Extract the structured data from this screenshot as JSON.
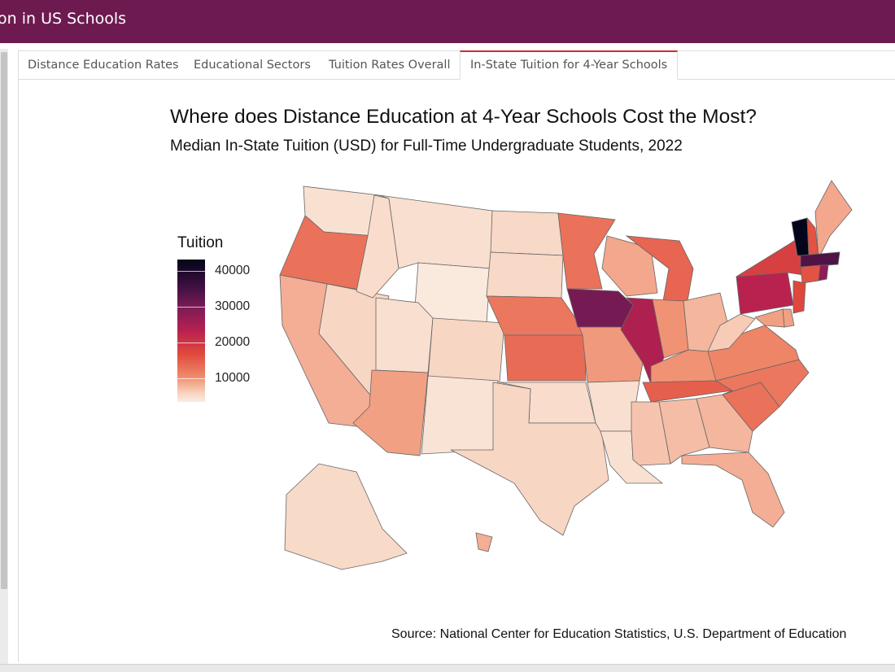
{
  "app": {
    "title": "on in US Schools"
  },
  "tabs": [
    {
      "label": "Distance Education Rates"
    },
    {
      "label": "Educational Sectors"
    },
    {
      "label": "Tuition Rates Overall"
    },
    {
      "label": "In-State Tuition for 4-Year Schools",
      "active": true
    }
  ],
  "chart": {
    "title": "Where does Distance Education at 4-Year Schools Cost the Most?",
    "subtitle": "Median In-State Tuition (USD) for Full-Time Undergraduate Students, 2022",
    "source": "Source: National Center for Education Statistics, U.S. Department of Education"
  },
  "chart_data": {
    "type": "choropleth map",
    "title": "Where does Distance Education at 4-Year Schools Cost the Most?",
    "subtitle": "Median In-State Tuition (USD) for Full-Time Undergraduate Students, 2022",
    "legend": {
      "title": "Tuition",
      "ticks": [
        40000,
        30000,
        20000,
        10000
      ],
      "range": [
        5000,
        42000
      ],
      "placement": "left"
    },
    "color_scale": [
      "#faebe0",
      "#f8d5c2",
      "#ef8a6a",
      "#e0483d",
      "#b8214f",
      "#7d1b56",
      "#3b0f3f",
      "#03051a"
    ],
    "states": [
      {
        "name": "WA",
        "value": 7500
      },
      {
        "name": "OR",
        "value": 17500
      },
      {
        "name": "CA",
        "value": 13000
      },
      {
        "name": "NV",
        "value": 10000
      },
      {
        "name": "ID",
        "value": 8500
      },
      {
        "name": "MT",
        "value": 8000
      },
      {
        "name": "WY",
        "value": 5500
      },
      {
        "name": "UT",
        "value": 8000
      },
      {
        "name": "AZ",
        "value": 14000
      },
      {
        "name": "CO",
        "value": 10000
      },
      {
        "name": "NM",
        "value": 7000
      },
      {
        "name": "ND",
        "value": 9500
      },
      {
        "name": "SD",
        "value": 9500
      },
      {
        "name": "NE",
        "value": 17000
      },
      {
        "name": "KS",
        "value": 18000
      },
      {
        "name": "OK",
        "value": 8500
      },
      {
        "name": "TX",
        "value": 10000
      },
      {
        "name": "MN",
        "value": 17500
      },
      {
        "name": "IA",
        "value": 32000
      },
      {
        "name": "MO",
        "value": 14500
      },
      {
        "name": "AR",
        "value": 8000
      },
      {
        "name": "LA",
        "value": 7500
      },
      {
        "name": "WI",
        "value": 13500
      },
      {
        "name": "IL",
        "value": 27000
      },
      {
        "name": "MI",
        "value": 18500
      },
      {
        "name": "IN",
        "value": 15000
      },
      {
        "name": "OH",
        "value": 12500
      },
      {
        "name": "KY",
        "value": 15000
      },
      {
        "name": "TN",
        "value": 19000
      },
      {
        "name": "MS",
        "value": 11500
      },
      {
        "name": "AL",
        "value": 12000
      },
      {
        "name": "GA",
        "value": 12500
      },
      {
        "name": "FL",
        "value": 13000
      },
      {
        "name": "SC",
        "value": 17500
      },
      {
        "name": "NC",
        "value": 17000
      },
      {
        "name": "VA",
        "value": 16000
      },
      {
        "name": "WV",
        "value": 11000
      },
      {
        "name": "PA",
        "value": 26000
      },
      {
        "name": "NY",
        "value": 22000
      },
      {
        "name": "VT",
        "value": 42000
      },
      {
        "name": "NH",
        "value": 20000
      },
      {
        "name": "ME",
        "value": 13500
      },
      {
        "name": "MA",
        "value": 35000
      },
      {
        "name": "CT",
        "value": 20000
      },
      {
        "name": "RI",
        "value": 30000
      },
      {
        "name": "NJ",
        "value": 21000
      },
      {
        "name": "DE",
        "value": 14000
      },
      {
        "name": "MD",
        "value": 14000
      },
      {
        "name": "AK",
        "value": 9000
      },
      {
        "name": "HI",
        "value": 13000
      }
    ]
  }
}
